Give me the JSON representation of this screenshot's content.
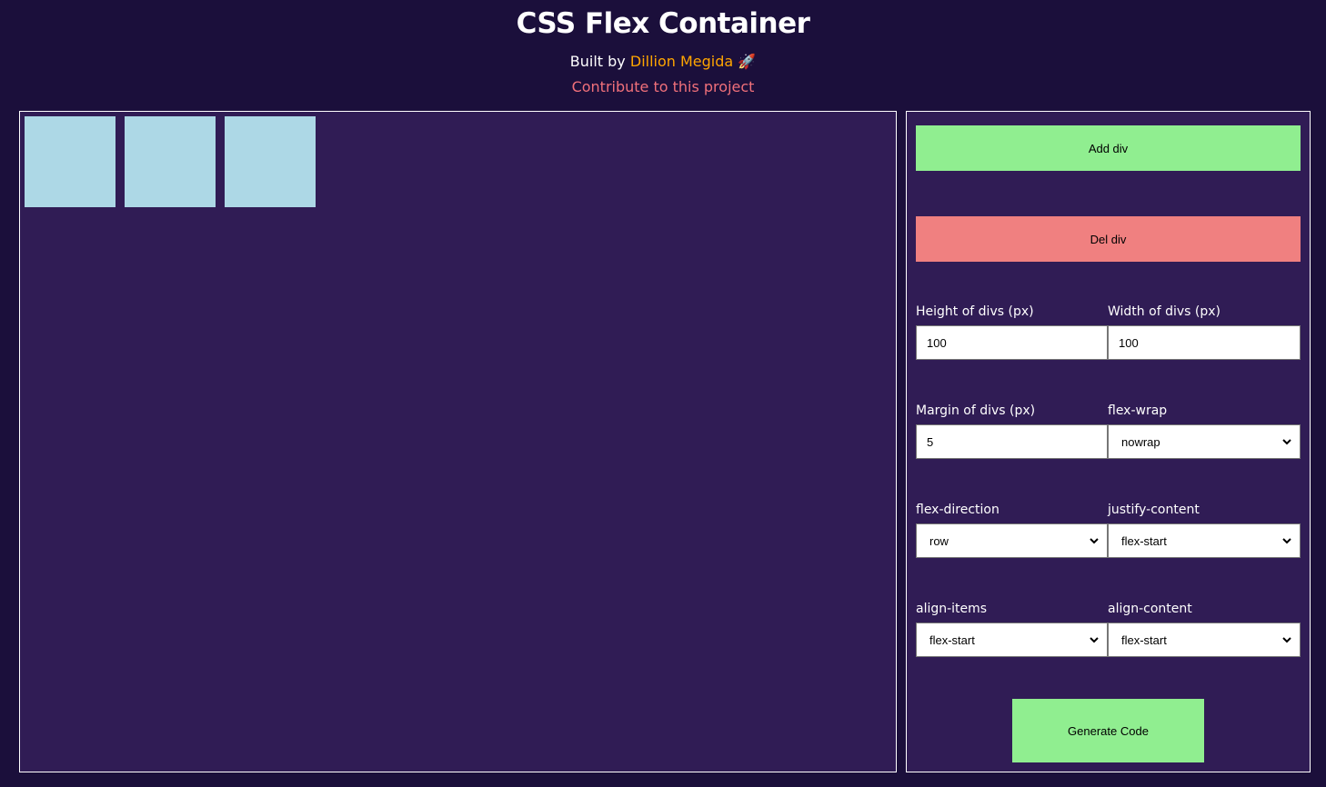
{
  "header": {
    "title": "CSS Flex Container",
    "built_by": "Built by",
    "author": "Dillion Megida",
    "rocket": "🚀",
    "contribute": "Contribute to this project"
  },
  "stage": {
    "box_count": 3,
    "box_color": "#add8e6"
  },
  "controls": {
    "add_label": "Add div",
    "del_label": "Del div",
    "height_label": "Height of divs (px)",
    "height_value": "100",
    "width_label": "Width of divs (px)",
    "width_value": "100",
    "margin_label": "Margin of divs (px)",
    "margin_value": "5",
    "wrap_label": "flex-wrap",
    "wrap_value": "nowrap",
    "direction_label": "flex-direction",
    "direction_value": "row",
    "justify_label": "justify-content",
    "justify_value": "flex-start",
    "align_items_label": "align-items",
    "align_items_value": "flex-start",
    "align_content_label": "align-content",
    "align_content_value": "flex-start",
    "generate_label": "Generate Code"
  },
  "colors": {
    "background": "#1b0f3b",
    "panel": "#301c55",
    "add": "#90ee90",
    "del": "#f08080",
    "author": "#ffa500",
    "contribute": "#f0707a"
  }
}
